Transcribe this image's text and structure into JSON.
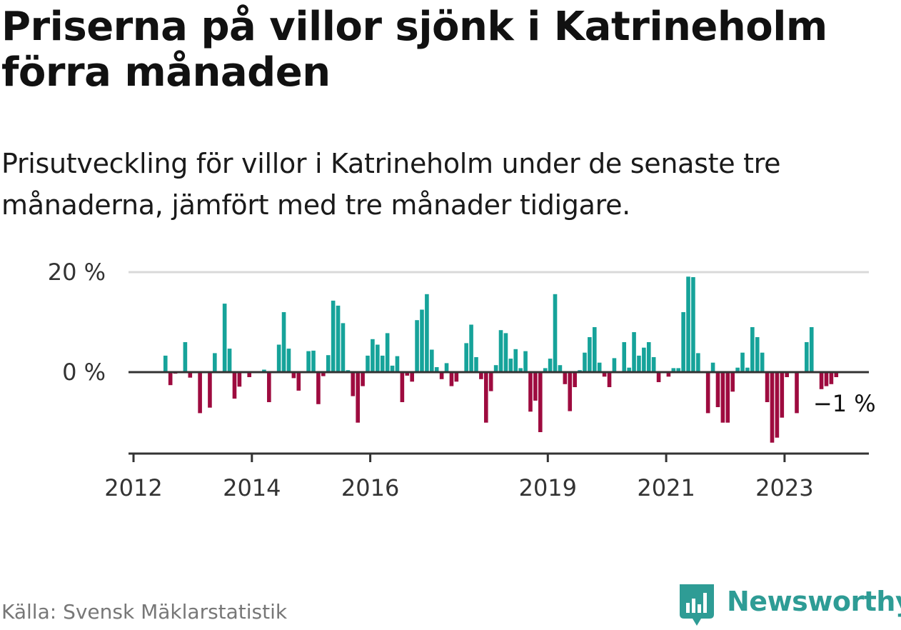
{
  "title": "Priserna på villor sjönk i Katrineholm förra månaden",
  "subtitle": "Prisutveckling för villor i Katrineholm under de senaste tre månaderna, jämfört med tre månader tidigare.",
  "source": "Källa: Svensk Mäklarstatistik",
  "brand": {
    "name": "Newsworthy",
    "icon": "newsworthy-logo-icon"
  },
  "colors": {
    "positive": "#16a39a",
    "negative": "#9e0b3f",
    "axis": "#333333",
    "grid": "#d9d9d9"
  },
  "chart_data": {
    "type": "bar",
    "unit": "%",
    "x_start": "2012-01",
    "frequency": "monthly",
    "ylim": [
      -16,
      20
    ],
    "yticks": [
      {
        "value": 20,
        "label": "20 %"
      },
      {
        "value": 0,
        "label": "0 %"
      }
    ],
    "xticks": [
      {
        "year": 2012,
        "label": "2012"
      },
      {
        "year": 2014,
        "label": "2014"
      },
      {
        "year": 2016,
        "label": "2016"
      },
      {
        "year": 2019,
        "label": "2019"
      },
      {
        "year": 2021,
        "label": "2021"
      },
      {
        "year": 2023,
        "label": "2023"
      }
    ],
    "grid": true,
    "annotation": {
      "label": "−1 %",
      "value": -1
    },
    "values": [
      null,
      null,
      null,
      null,
      null,
      null,
      3.3,
      -2.6,
      -0.3,
      null,
      6.0,
      -1.1,
      null,
      -8.2,
      null,
      -7.1,
      3.8,
      null,
      13.7,
      4.7,
      -5.3,
      -2.9,
      null,
      -1.0,
      null,
      null,
      0.5,
      -6.0,
      null,
      5.5,
      12.0,
      4.7,
      -1.2,
      -3.7,
      null,
      4.2,
      4.3,
      -6.4,
      -0.8,
      3.4,
      14.3,
      13.3,
      9.8,
      0.4,
      -4.8,
      -10.1,
      -2.8,
      3.3,
      6.6,
      5.5,
      3.3,
      7.8,
      1.3,
      3.2,
      -6.0,
      -0.7,
      -1.9,
      10.4,
      12.5,
      15.6,
      4.5,
      1.0,
      -1.4,
      1.8,
      -2.8,
      -1.9,
      null,
      5.8,
      9.5,
      3.0,
      -1.4,
      -10.1,
      -3.8,
      1.4,
      8.4,
      7.8,
      2.7,
      4.6,
      0.8,
      4.2,
      -7.9,
      -5.7,
      -12.0,
      0.8,
      2.7,
      15.6,
      1.4,
      -2.4,
      -7.8,
      -3.0,
      0.4,
      3.9,
      7.0,
      9.0,
      1.9,
      -0.9,
      -3.0,
      2.8,
      null,
      6.0,
      0.9,
      8.0,
      3.3,
      4.9,
      6.0,
      3.0,
      -2.0,
      null,
      -0.9,
      0.8,
      0.8,
      12.0,
      19.1,
      19.0,
      3.8,
      null,
      -8.2,
      1.9,
      -7.0,
      -10.1,
      -10.1,
      -3.9,
      0.9,
      3.9,
      0.9,
      9.0,
      7.0,
      3.9,
      -6.0,
      -14.1,
      -13.1,
      -9.1,
      -1.0,
      null,
      -8.2,
      null,
      6.0,
      9.0,
      null,
      -3.4,
      -2.8,
      -2.4,
      -1.0,
      null
    ]
  }
}
